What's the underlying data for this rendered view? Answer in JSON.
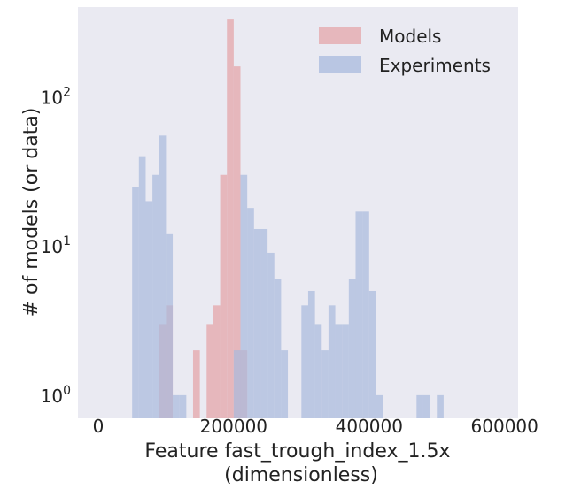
{
  "chart_data": {
    "type": "bar",
    "xlabel_lines": [
      "Feature fast_trough_index_1.5x",
      "(dimensionless)"
    ],
    "ylabel": "# of models (or data)",
    "x_ticks": [
      0,
      200000,
      400000,
      600000
    ],
    "x_tick_labels": [
      "0",
      "200000",
      "400000",
      "600000"
    ],
    "xlim": [
      -30000,
      620000
    ],
    "y_scale": "log",
    "ylim": [
      0.7,
      400
    ],
    "y_ticks": [
      1,
      10,
      100
    ],
    "y_tick_labels": [
      {
        "base": "10",
        "exp": "0"
      },
      {
        "base": "10",
        "exp": "1"
      },
      {
        "base": "10",
        "exp": "2"
      }
    ],
    "grid": false,
    "legend": "top-right",
    "series": [
      {
        "name": "Models",
        "color": "#e5aeb3",
        "bin_width": 10000,
        "bins": [
          {
            "x0": 90000,
            "count": 3
          },
          {
            "x0": 100000,
            "count": 4
          },
          {
            "x0": 140000,
            "count": 2
          },
          {
            "x0": 160000,
            "count": 3
          },
          {
            "x0": 170000,
            "count": 4
          },
          {
            "x0": 180000,
            "count": 30
          },
          {
            "x0": 190000,
            "count": 330
          },
          {
            "x0": 200000,
            "count": 160
          },
          {
            "x0": 210000,
            "count": 2
          }
        ]
      },
      {
        "name": "Experiments",
        "color": "#a8b9dd",
        "bin_width": 10000,
        "bins": [
          {
            "x0": 50000,
            "count": 25
          },
          {
            "x0": 60000,
            "count": 40
          },
          {
            "x0": 70000,
            "count": 20
          },
          {
            "x0": 80000,
            "count": 30
          },
          {
            "x0": 90000,
            "count": 55
          },
          {
            "x0": 100000,
            "count": 12
          },
          {
            "x0": 110000,
            "count": 1
          },
          {
            "x0": 120000,
            "count": 1
          },
          {
            "x0": 200000,
            "count": 2
          },
          {
            "x0": 210000,
            "count": 30
          },
          {
            "x0": 220000,
            "count": 18
          },
          {
            "x0": 230000,
            "count": 13
          },
          {
            "x0": 240000,
            "count": 13
          },
          {
            "x0": 250000,
            "count": 9
          },
          {
            "x0": 260000,
            "count": 6
          },
          {
            "x0": 270000,
            "count": 2
          },
          {
            "x0": 300000,
            "count": 4
          },
          {
            "x0": 310000,
            "count": 5
          },
          {
            "x0": 320000,
            "count": 3
          },
          {
            "x0": 330000,
            "count": 2
          },
          {
            "x0": 340000,
            "count": 4
          },
          {
            "x0": 350000,
            "count": 3
          },
          {
            "x0": 360000,
            "count": 3
          },
          {
            "x0": 370000,
            "count": 6
          },
          {
            "x0": 380000,
            "count": 17
          },
          {
            "x0": 390000,
            "count": 17
          },
          {
            "x0": 400000,
            "count": 5
          },
          {
            "x0": 410000,
            "count": 1
          },
          {
            "x0": 470000,
            "count": 1
          },
          {
            "x0": 480000,
            "count": 1
          },
          {
            "x0": 500000,
            "count": 1
          }
        ]
      }
    ]
  }
}
